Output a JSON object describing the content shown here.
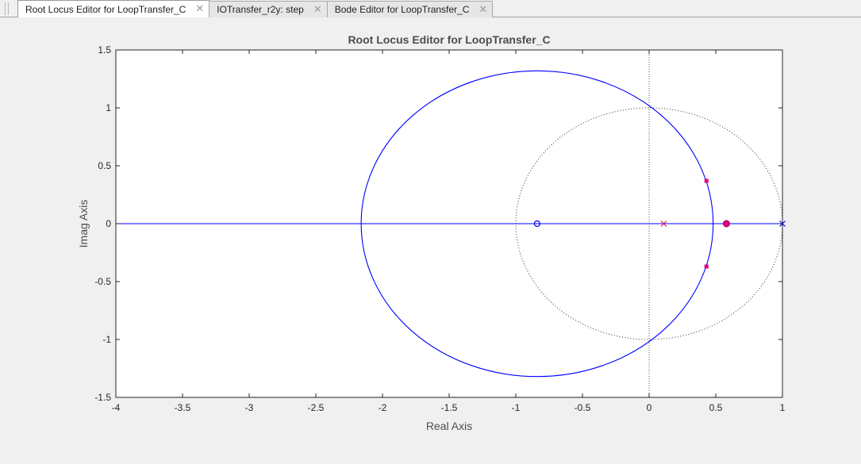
{
  "tabs": [
    {
      "label": "Root Locus Editor for LoopTransfer_C",
      "active": true
    },
    {
      "label": "IOTransfer_r2y: step",
      "active": false
    },
    {
      "label": "Bode Editor for LoopTransfer_C",
      "active": false
    }
  ],
  "close_glyph": "✕",
  "chart_data": {
    "type": "scatter",
    "title": "Root Locus Editor for LoopTransfer_C",
    "xlabel": "Real Axis",
    "ylabel": "Imag Axis",
    "xlim": [
      -4,
      1
    ],
    "ylim": [
      -1.5,
      1.5
    ],
    "xticks": [
      -4,
      -3.5,
      -3,
      -2.5,
      -2,
      -1.5,
      -1,
      -0.5,
      0,
      0.5,
      1
    ],
    "xtick_labels": [
      "-4",
      "-3.5",
      "-3",
      "-2.5",
      "-2",
      "-1.5",
      "-1",
      "-0.5",
      "0",
      "0.5",
      "1"
    ],
    "yticks": [
      1.5,
      1,
      0.5,
      0,
      -0.5,
      -1,
      -1.5
    ],
    "ytick_labels": [
      "1.5",
      "1",
      "0.5",
      "0",
      "-0.5",
      "-1",
      "-1.5"
    ],
    "grid": false,
    "locus_circle": {
      "center": [
        -0.84,
        0
      ],
      "radius": 1.32
    },
    "locus_real_segments": [
      [
        -4,
        0.57
      ],
      [
        0.57,
        1
      ]
    ],
    "unit_circle": {
      "center": [
        0,
        0
      ],
      "radius": 1
    },
    "open_loop_zeros": [
      [
        -0.84,
        0
      ]
    ],
    "open_loop_poles": [
      [
        0.11,
        0
      ],
      [
        1.0,
        0
      ]
    ],
    "closed_loop_poles": [
      [
        0.43,
        0.37
      ],
      [
        0.43,
        -0.37
      ],
      [
        0.58,
        0
      ]
    ],
    "colors": {
      "locus": "#0000ff",
      "zero": "#0000ff",
      "pole_open": "#0000ff",
      "pole_open_alt": "#e0205a",
      "closed_loop": "#e6007e",
      "axis_text": "#4d4d4d",
      "title_text": "#4d4d4d",
      "grid_dotted": "#000000"
    }
  }
}
